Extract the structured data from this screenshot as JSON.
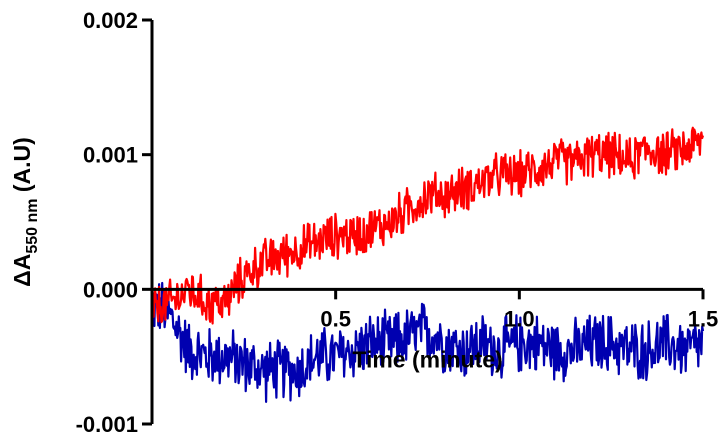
{
  "chart_data": {
    "type": "line",
    "xlabel": "Time (minute)",
    "ylabel_prefix": "ΔA",
    "ylabel_subscript": "550 nm",
    "ylabel_suffix": " (A.U)",
    "xlim": [
      0,
      1.5
    ],
    "ylim": [
      -0.001,
      0.002
    ],
    "x_ticks": [
      0.5,
      1.0,
      1.5
    ],
    "x_tick_labels": [
      "0.5",
      "1.0",
      "1.5"
    ],
    "y_ticks": [
      -0.001,
      0.0,
      0.001,
      0.002
    ],
    "y_tick_labels": [
      "-0.001",
      "0.000",
      "0.001",
      "0.002"
    ],
    "grid": false,
    "legend": "none",
    "series": [
      {
        "color": "#ff0000",
        "noise_amplitude": 0.00015,
        "x": [
          0.0,
          0.05,
          0.1,
          0.15,
          0.2,
          0.25,
          0.3,
          0.35,
          0.4,
          0.45,
          0.5,
          0.55,
          0.6,
          0.65,
          0.7,
          0.75,
          0.8,
          0.85,
          0.9,
          0.95,
          1.0,
          1.05,
          1.1,
          1.15,
          1.2,
          1.25,
          1.3,
          1.35,
          1.4,
          1.45,
          1.5
        ],
        "y": [
          -0.00015,
          -0.0001,
          0.0,
          -0.0001,
          -0.0001,
          0.0001,
          0.0002,
          0.00025,
          0.0003,
          0.00035,
          0.0004,
          0.0004,
          0.00045,
          0.0005,
          0.0006,
          0.0007,
          0.0007,
          0.00075,
          0.0008,
          0.00085,
          0.00085,
          0.0009,
          0.00095,
          0.00095,
          0.001,
          0.001,
          0.00095,
          0.00105,
          0.001,
          0.00105,
          0.0011
        ]
      },
      {
        "color": "#0000b0",
        "noise_amplitude": 0.0002,
        "x": [
          0.0,
          0.05,
          0.1,
          0.15,
          0.2,
          0.25,
          0.3,
          0.35,
          0.4,
          0.45,
          0.5,
          0.55,
          0.6,
          0.65,
          0.7,
          0.75,
          0.8,
          0.85,
          0.9,
          0.95,
          1.0,
          1.05,
          1.1,
          1.15,
          1.2,
          1.25,
          1.3,
          1.35,
          1.4,
          1.45,
          1.5
        ],
        "y": [
          -0.0001,
          -0.0002,
          -0.00045,
          -0.0005,
          -0.0005,
          -0.00055,
          -0.0006,
          -0.0006,
          -0.0006,
          -0.0005,
          -0.0005,
          -0.00045,
          -0.0004,
          -0.0004,
          -0.00035,
          -0.0003,
          -0.0004,
          -0.00045,
          -0.0004,
          -0.00045,
          -0.0004,
          -0.0004,
          -0.00045,
          -0.00045,
          -0.0004,
          -0.0004,
          -0.00045,
          -0.00045,
          -0.0004,
          -0.00045,
          -0.0004
        ]
      }
    ]
  }
}
